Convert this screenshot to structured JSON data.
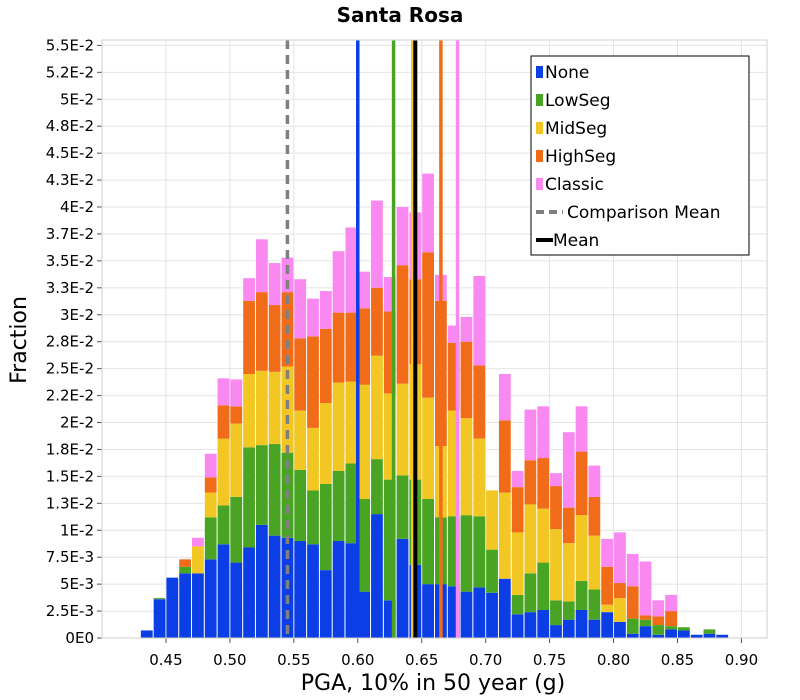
{
  "chart_data": {
    "type": "bar",
    "stacked": true,
    "title": "Santa Rosa",
    "xlabel": "PGA, 10% in 50 year (g)",
    "ylabel": "Fraction",
    "xlim": [
      0.4,
      0.92
    ],
    "ylim": [
      0,
      0.0555
    ],
    "grid": true,
    "legend_position": "top-right",
    "x_ticks": [
      0.45,
      0.5,
      0.55,
      0.6,
      0.65,
      0.7,
      0.75,
      0.8,
      0.85,
      0.9
    ],
    "x_tick_labels": [
      "0.45",
      "0.50",
      "0.55",
      "0.60",
      "0.65",
      "0.70",
      "0.75",
      "0.80",
      "0.85",
      "0.90"
    ],
    "y_ticks": [
      0,
      0.0025,
      0.005,
      0.0075,
      0.01,
      0.0125,
      0.015,
      0.0175,
      0.02,
      0.0225,
      0.025,
      0.0275,
      0.03,
      0.0325,
      0.035,
      0.0375,
      0.04,
      0.0425,
      0.045,
      0.0475,
      0.05,
      0.0525,
      0.055
    ],
    "y_tick_labels": [
      "0E0",
      "2.5E-3",
      "5E-3",
      "7.5E-3",
      "1E-2",
      "1.3E-2",
      "1.5E-2",
      "1.8E-2",
      "2E-2",
      "2.2E-2",
      "2.5E-2",
      "2.8E-2",
      "3E-2",
      "3.3E-2",
      "3.5E-2",
      "3.7E-2",
      "4E-2",
      "4.3E-2",
      "4.5E-2",
      "4.8E-2",
      "5E-2",
      "5.2E-2",
      "5.5E-2"
    ],
    "bin_width": 0.01,
    "bin_centers": [
      0.435,
      0.445,
      0.455,
      0.465,
      0.475,
      0.485,
      0.495,
      0.505,
      0.515,
      0.525,
      0.535,
      0.545,
      0.555,
      0.565,
      0.575,
      0.585,
      0.595,
      0.605,
      0.615,
      0.625,
      0.635,
      0.645,
      0.655,
      0.665,
      0.675,
      0.685,
      0.695,
      0.705,
      0.715,
      0.725,
      0.735,
      0.745,
      0.755,
      0.765,
      0.775,
      0.785,
      0.795,
      0.805,
      0.815,
      0.825,
      0.835,
      0.845,
      0.855,
      0.865,
      0.875,
      0.885,
      0.895,
      0.905,
      0.915
    ],
    "series": [
      {
        "name": "None",
        "color": "#0c3ee6",
        "values": [
          0.0007,
          0.0036,
          0.0056,
          0.006,
          0.006,
          0.0073,
          0.0087,
          0.007,
          0.0084,
          0.0105,
          0.0095,
          0.0093,
          0.009,
          0.0087,
          0.0063,
          0.009,
          0.0088,
          0.0043,
          0.0115,
          0.0035,
          0.0092,
          0.0068,
          0.005,
          0.005,
          0.0048,
          0.0043,
          0.0047,
          0.0042,
          0.0055,
          0.0022,
          0.0024,
          0.0026,
          0.0012,
          0.0017,
          0.0026,
          0.0017,
          0.0024,
          0.0015,
          0.0004,
          0.0011,
          0.0003,
          0.0008,
          0.0007,
          0.0003,
          0.0004,
          0.0003,
          0.0,
          0.0,
          0.0
        ]
      },
      {
        "name": "LowSeg",
        "color": "#4aa423",
        "values": [
          0.0,
          0.0001,
          0.0,
          0.0006,
          0.0,
          0.0039,
          0.0036,
          0.0061,
          0.0093,
          0.0074,
          0.0085,
          0.0079,
          0.0066,
          0.005,
          0.008,
          0.0065,
          0.0074,
          0.0086,
          0.0051,
          0.0112,
          0.0059,
          0.0079,
          0.0079,
          0.0062,
          0.0065,
          0.0071,
          0.0066,
          0.004,
          0.0,
          0.0018,
          0.0036,
          0.0044,
          0.0023,
          0.0017,
          0.0027,
          0.0028,
          0.0,
          0.0,
          0.0014,
          0.0006,
          0.0009,
          0.0003,
          0.0003,
          0.0,
          0.0004,
          0.0,
          0.0,
          0.0,
          0.0
        ]
      },
      {
        "name": "MidSeg",
        "color": "#f2c723",
        "values": [
          0.0,
          0.0,
          0.0,
          0.0,
          0.0025,
          0.0023,
          0.0062,
          0.0068,
          0.0068,
          0.0069,
          0.0067,
          0.008,
          0.0055,
          0.0058,
          0.0075,
          0.0082,
          0.0076,
          0.0106,
          0.0096,
          0.008,
          0.0085,
          0.0107,
          0.0094,
          0.0066,
          0.0098,
          0.009,
          0.0072,
          0.0055,
          0.008,
          0.0058,
          0.0064,
          0.005,
          0.0066,
          0.0054,
          0.0061,
          0.005,
          0.0007,
          0.0022,
          0.0,
          0.0,
          0.0,
          0.0,
          0.0,
          0.0,
          0.0,
          0.0,
          0.0,
          0.0,
          0.0
        ]
      },
      {
        "name": "HighSeg",
        "color": "#f16c18",
        "values": [
          0.0,
          0.0,
          0.0,
          0.0007,
          0.0,
          0.0014,
          0.0031,
          0.0016,
          0.0068,
          0.0073,
          0.0062,
          0.0069,
          0.0067,
          0.0085,
          0.0069,
          0.0065,
          0.0064,
          0.0071,
          0.0063,
          0.0076,
          0.011,
          0.0079,
          0.0135,
          0.0135,
          0.0063,
          0.0071,
          0.0068,
          0.0,
          0.0067,
          0.0042,
          0.0041,
          0.0047,
          0.004,
          0.0033,
          0.0059,
          0.0036,
          0.0035,
          0.0014,
          0.003,
          0.0004,
          0.0008,
          0.0014,
          0.0,
          0.0,
          0.0,
          0.0,
          0.0,
          0.0,
          0.0
        ]
      },
      {
        "name": "Classic",
        "color": "#f989f0",
        "values": [
          0.0,
          0.0,
          0.0,
          0.0,
          0.0008,
          0.0022,
          0.0025,
          0.0025,
          0.0021,
          0.0049,
          0.0039,
          0.0032,
          0.0055,
          0.0035,
          0.0035,
          0.0057,
          0.0079,
          0.0034,
          0.0081,
          0.0032,
          0.0054,
          0.0062,
          0.0073,
          0.0024,
          0.0016,
          0.0023,
          0.0083,
          0.0,
          0.0043,
          0.0015,
          0.0047,
          0.0048,
          0.0012,
          0.007,
          0.0042,
          0.0029,
          0.0026,
          0.0047,
          0.003,
          0.005,
          0.0015,
          0.0015,
          0.0,
          0.0,
          0.0,
          0.0,
          0.0,
          0.0,
          0.0
        ]
      }
    ],
    "vertical_lines": [
      {
        "label": "None",
        "x": 0.6,
        "color": "#0c3ee6",
        "style": "solid"
      },
      {
        "label": "LowSeg",
        "x": 0.628,
        "color": "#4aa423",
        "style": "solid"
      },
      {
        "label": "MidSeg",
        "x": 0.643,
        "color": "#f2c723",
        "style": "solid"
      },
      {
        "label": "HighSeg",
        "x": 0.665,
        "color": "#f16c18",
        "style": "solid"
      },
      {
        "label": "Classic",
        "x": 0.678,
        "color": "#f989f0",
        "style": "solid"
      },
      {
        "label": "Comparison Mean",
        "x": 0.545,
        "color": "#808080",
        "style": "dashed"
      },
      {
        "label": "Mean",
        "x": 0.645,
        "color": "#000000",
        "style": "solid"
      }
    ],
    "legend": [
      {
        "label": "None",
        "color": "#0c3ee6",
        "kind": "box"
      },
      {
        "label": "LowSeg",
        "color": "#4aa423",
        "kind": "box"
      },
      {
        "label": "MidSeg",
        "color": "#f2c723",
        "kind": "box"
      },
      {
        "label": "HighSeg",
        "color": "#f16c18",
        "kind": "box"
      },
      {
        "label": "Classic",
        "color": "#f989f0",
        "kind": "box"
      },
      {
        "label": "Comparison Mean",
        "color": "#808080",
        "kind": "dashed"
      },
      {
        "label": "Mean",
        "color": "#000000",
        "kind": "line"
      }
    ]
  }
}
